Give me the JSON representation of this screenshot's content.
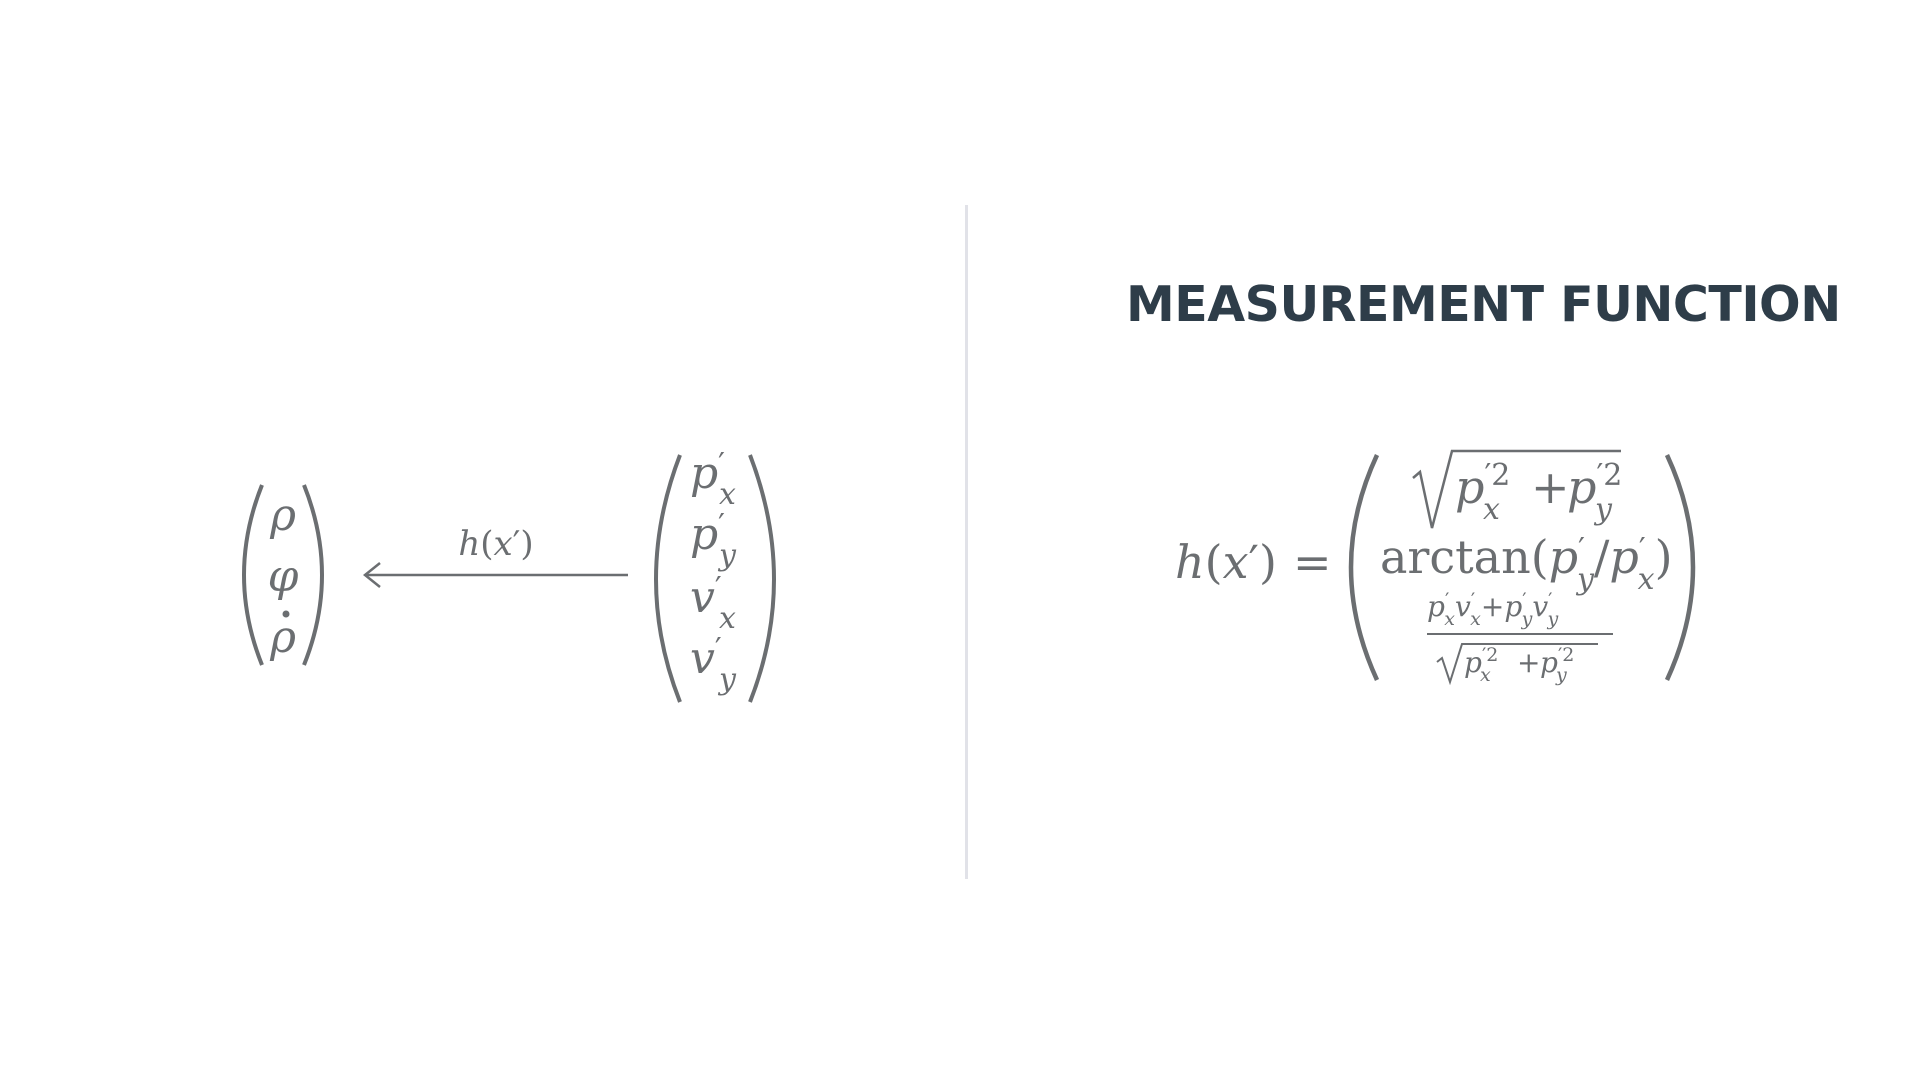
{
  "title": "MEASUREMENT FUNCTION",
  "left_diagram": {
    "polar_vector": {
      "entries": [
        {
          "base": "ρ",
          "dot": false
        },
        {
          "base": "φ",
          "dot": false
        },
        {
          "base": "ρ",
          "dot": true
        }
      ]
    },
    "arrow_label": {
      "func": "h",
      "open": "(",
      "arg": "x",
      "prime": "′",
      "close": ")"
    },
    "state_vector": {
      "entries": [
        {
          "base": "p",
          "prime": "′",
          "sub": "x"
        },
        {
          "base": "p",
          "prime": "′",
          "sub": "y"
        },
        {
          "base": "v",
          "prime": "′",
          "sub": "x"
        },
        {
          "base": "v",
          "prime": "′",
          "sub": "y"
        }
      ]
    }
  },
  "equation": {
    "lhs": {
      "func": "h",
      "open": "(",
      "arg": "x",
      "prime": "′",
      "close": ")",
      "equals": "="
    },
    "row1": {
      "term1": {
        "base": "p",
        "sup": "′2",
        "sub": "x"
      },
      "plus": "+",
      "term2": {
        "base": "p",
        "sup": "′2",
        "sub": "y"
      }
    },
    "row2": {
      "func": "arctan",
      "open": "(",
      "num": {
        "base": "p",
        "prime": "′",
        "sub": "y"
      },
      "slash": "/",
      "den": {
        "base": "p",
        "prime": "′",
        "sub": "x"
      },
      "close": ")"
    },
    "row3": {
      "numerator": [
        {
          "base": "p",
          "prime": "′",
          "sub": "x"
        },
        {
          "base": "v",
          "prime": "′",
          "sub": "x"
        },
        {
          "op": "+"
        },
        {
          "base": "p",
          "prime": "′",
          "sub": "y"
        },
        {
          "base": "v",
          "prime": "′",
          "sub": "y"
        }
      ],
      "denominator": {
        "term1": {
          "base": "p",
          "sup": "′2",
          "sub": "x"
        },
        "plus": "+",
        "term2": {
          "base": "p",
          "sup": "′2",
          "sub": "y"
        }
      }
    }
  }
}
